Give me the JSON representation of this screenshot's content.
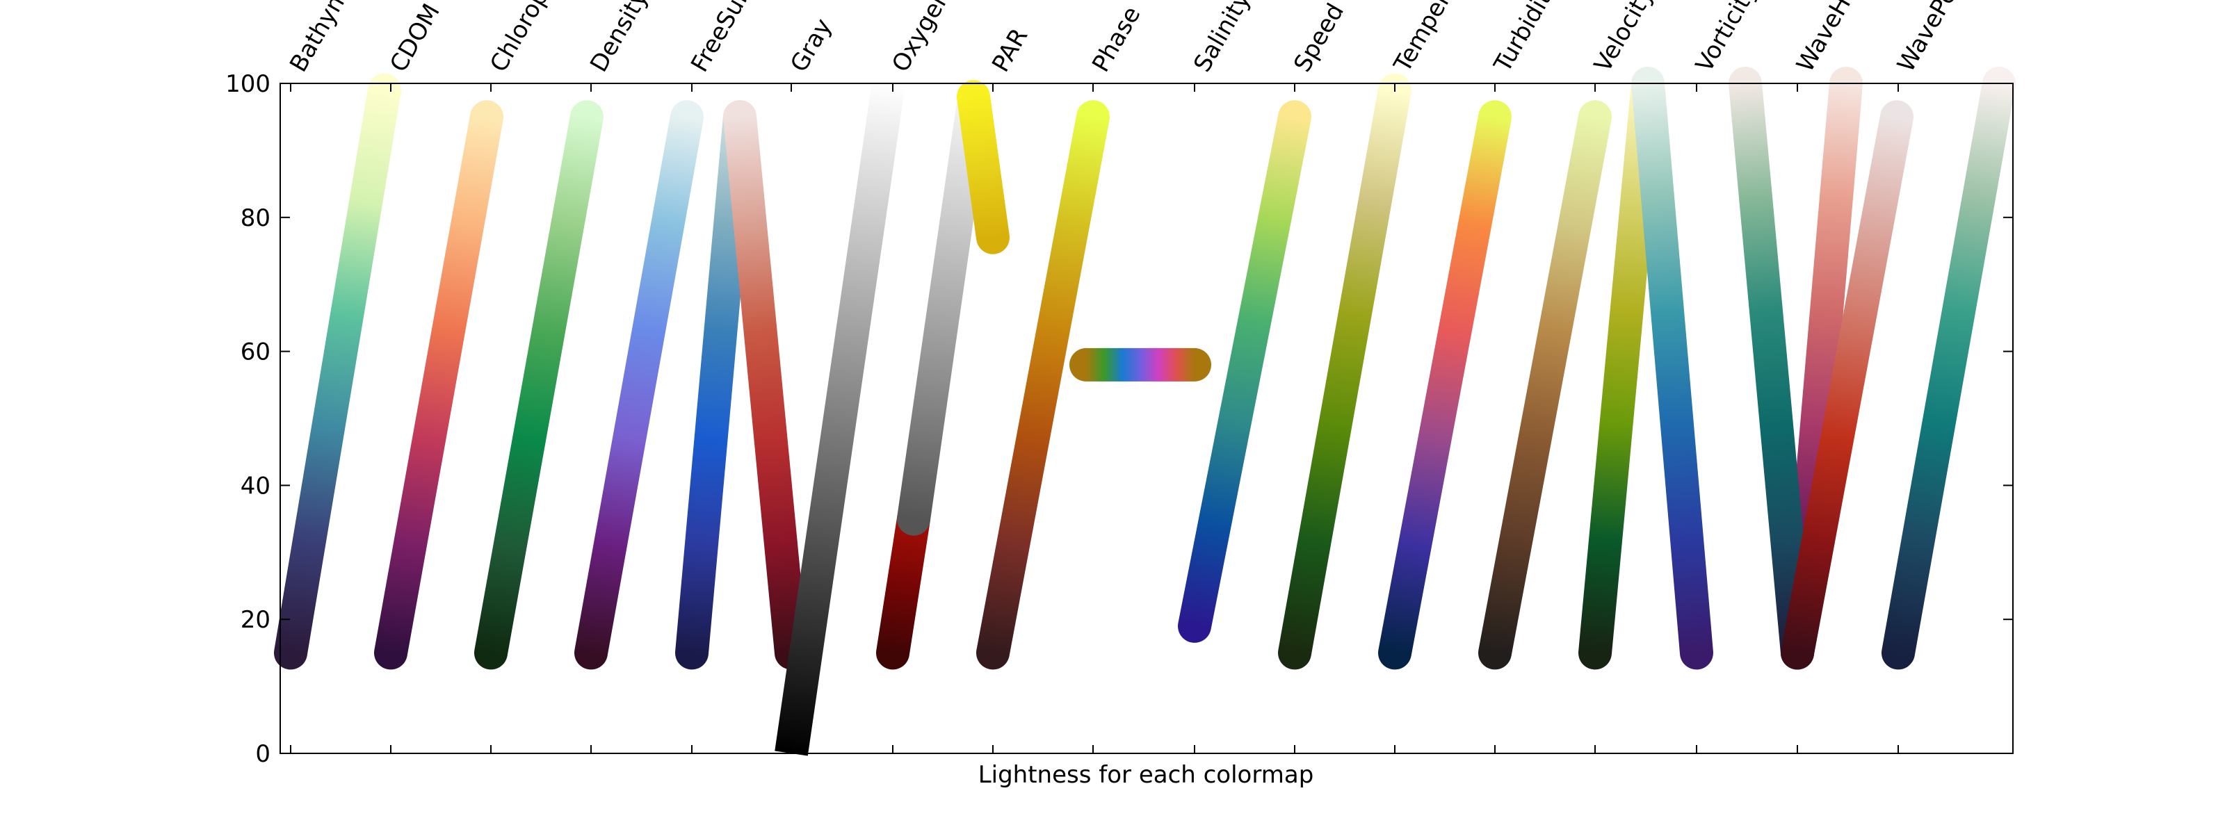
{
  "chart_data": {
    "type": "line",
    "title": "",
    "xlabel": "Lightness for each colormap",
    "ylabel": "",
    "ylim": [
      0,
      100
    ],
    "yticks": [
      0,
      20,
      40,
      60,
      80,
      100
    ],
    "grid": false,
    "legend": "none",
    "series": [
      {
        "name": "Bathymetry",
        "start": 15,
        "end": 99,
        "stops": [
          "#2b1a3a",
          "#3a3f78",
          "#3f8aa2",
          "#5cc29e",
          "#d4f2b0",
          "#fdfecc"
        ]
      },
      {
        "name": "CDOM",
        "start": 15,
        "end": 95,
        "stops": [
          "#2f0f3e",
          "#7a1f66",
          "#c23a5a",
          "#ee7450",
          "#fbb57e",
          "#fee8b2"
        ]
      },
      {
        "name": "Chlorophyll",
        "start": 15,
        "end": 95,
        "stops": [
          "#0f2a10",
          "#1f5a36",
          "#0a8a4a",
          "#4aa856",
          "#99d08a",
          "#d7fad0"
        ]
      },
      {
        "name": "Density",
        "start": 15,
        "end": 95,
        "stops": [
          "#360e24",
          "#6a1f80",
          "#7a60d0",
          "#6a8ae8",
          "#8ac2e0",
          "#e6f1f1"
        ]
      },
      {
        "name": "Freesurface-Blue",
        "start": 15,
        "end": 95,
        "stops": [
          "#1a1a4a",
          "#2c3aa0",
          "#1a5cd0",
          "#3a80b8",
          "#80aec0",
          "#cfe0e0"
        ]
      },
      {
        "name": "Freesurface-Red",
        "start": 15,
        "end": 95,
        "stops": [
          "#3c0d17",
          "#8a1428",
          "#b83030",
          "#c85a44",
          "#daa092",
          "#f0e0de"
        ]
      },
      {
        "name": "Gray",
        "start": 0,
        "end": 100,
        "stops": [
          "#000000",
          "#333333",
          "#666666",
          "#999999",
          "#cccccc",
          "#ffffff"
        ]
      },
      {
        "name": "Oxygen-Low",
        "start": 15,
        "end": 35,
        "stops": [
          "#400505",
          "#760505",
          "#a60f05"
        ]
      },
      {
        "name": "Oxygen-Mid",
        "start": 35,
        "end": 97,
        "stops": [
          "#555555",
          "#808080",
          "#a8a8a8",
          "#d0d0d0",
          "#f4f4f4"
        ]
      },
      {
        "name": "Oxygen-High",
        "start": 77,
        "end": 98,
        "stops": [
          "#d8b00a",
          "#e8d21c",
          "#f8f020"
        ]
      },
      {
        "name": "PAR",
        "start": 15,
        "end": 95,
        "stops": [
          "#341a1d",
          "#7a2e28",
          "#b05010",
          "#c8860e",
          "#d4c020",
          "#e8fe48"
        ]
      },
      {
        "name": "Phase",
        "start": 58,
        "end": 58,
        "stops": [
          "#a8780e",
          "#3a9a2a",
          "#1a7ad0",
          "#7060e0",
          "#d040c0",
          "#e05050",
          "#a8780e"
        ]
      },
      {
        "name": "Salinity",
        "start": 19,
        "end": 95,
        "stops": [
          "#2a1890",
          "#0a50a0",
          "#2e8a8a",
          "#4ab070",
          "#a8d858",
          "#fde78e"
        ]
      },
      {
        "name": "Speed",
        "start": 15,
        "end": 99,
        "stops": [
          "#1a2a10",
          "#1a5a1a",
          "#5a8a0a",
          "#9aa41a",
          "#d0c480",
          "#fffdce"
        ]
      },
      {
        "name": "Temperature",
        "start": 15,
        "end": 95,
        "stops": [
          "#042346",
          "#3b30a0",
          "#9a4a8c",
          "#e85a5a",
          "#f88a40",
          "#e8fa5a"
        ]
      },
      {
        "name": "Turbidity",
        "start": 15,
        "end": 95,
        "stops": [
          "#221e1c",
          "#5a3a28",
          "#8a5a32",
          "#b88a4a",
          "#d2c884",
          "#e9f6ab"
        ]
      },
      {
        "name": "Velocity-Green",
        "start": 15,
        "end": 100,
        "stops": [
          "#172313",
          "#0a5a2a",
          "#6a9a0a",
          "#b0b020",
          "#d8d470",
          "#fffbc8"
        ]
      },
      {
        "name": "Velocity-Blue",
        "start": 15,
        "end": 100,
        "stops": [
          "#3a1a6a",
          "#2a3aa0",
          "#1f6aae",
          "#3a9aaa",
          "#90c4b8",
          "#e8f2ec"
        ]
      },
      {
        "name": "Vorticity-Pink",
        "start": 15,
        "end": 100,
        "stops": [
          "#2d1a3c",
          "#6a1a5a",
          "#a83a6a",
          "#d06a6a",
          "#e8a090",
          "#f6e6e0"
        ]
      },
      {
        "name": "Vorticity-Teal",
        "start": 15,
        "end": 100,
        "stops": [
          "#1e1a3c",
          "#1a4a60",
          "#0e6a6a",
          "#2a8a7a",
          "#88b898",
          "#f2e8e4"
        ]
      },
      {
        "name": "WaveHeight",
        "start": 15,
        "end": 95,
        "stops": [
          "#3c0d17",
          "#881416",
          "#c0301a",
          "#d07060",
          "#dcaaa2",
          "#ece4e4"
        ]
      },
      {
        "name": "WavePeriod",
        "start": 15,
        "end": 100,
        "stops": [
          "#172040",
          "#1d4a64",
          "#107a7a",
          "#3aa08a",
          "#9cc2a6",
          "#f8f0ee"
        ]
      }
    ],
    "categories": [
      {
        "label": "Bathymetry"
      },
      {
        "label": "CDOM"
      },
      {
        "label": "Chlorophyll"
      },
      {
        "label": "Density"
      },
      {
        "label": "FreeSurface"
      },
      {
        "label": "Gray"
      },
      {
        "label": "Oxygen"
      },
      {
        "label": "PAR"
      },
      {
        "label": "Phase"
      },
      {
        "label": "Salinity"
      },
      {
        "label": "Speed"
      },
      {
        "label": "Temperature"
      },
      {
        "label": "Turbidity"
      },
      {
        "label": "Velocity"
      },
      {
        "label": "Vorticity"
      },
      {
        "label": "WaveHeight"
      },
      {
        "label": "WavePeriod"
      }
    ]
  }
}
